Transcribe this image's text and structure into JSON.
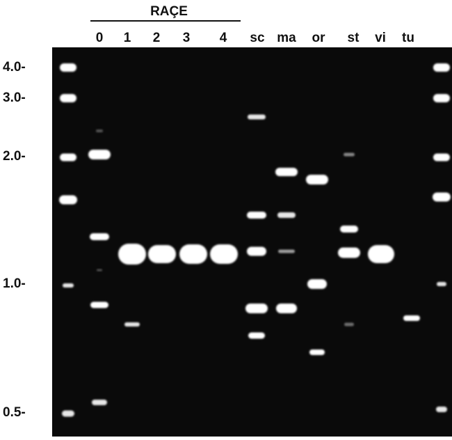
{
  "header": {
    "title": "RAÇE"
  },
  "lanes": [
    "0",
    "1",
    "2",
    "3",
    "4",
    "sc",
    "ma",
    "or",
    "st",
    "vi",
    "tu"
  ],
  "size_markers": [
    "4.0-",
    "3.0-",
    "2.0-",
    "1.0-",
    "0.5-"
  ]
}
